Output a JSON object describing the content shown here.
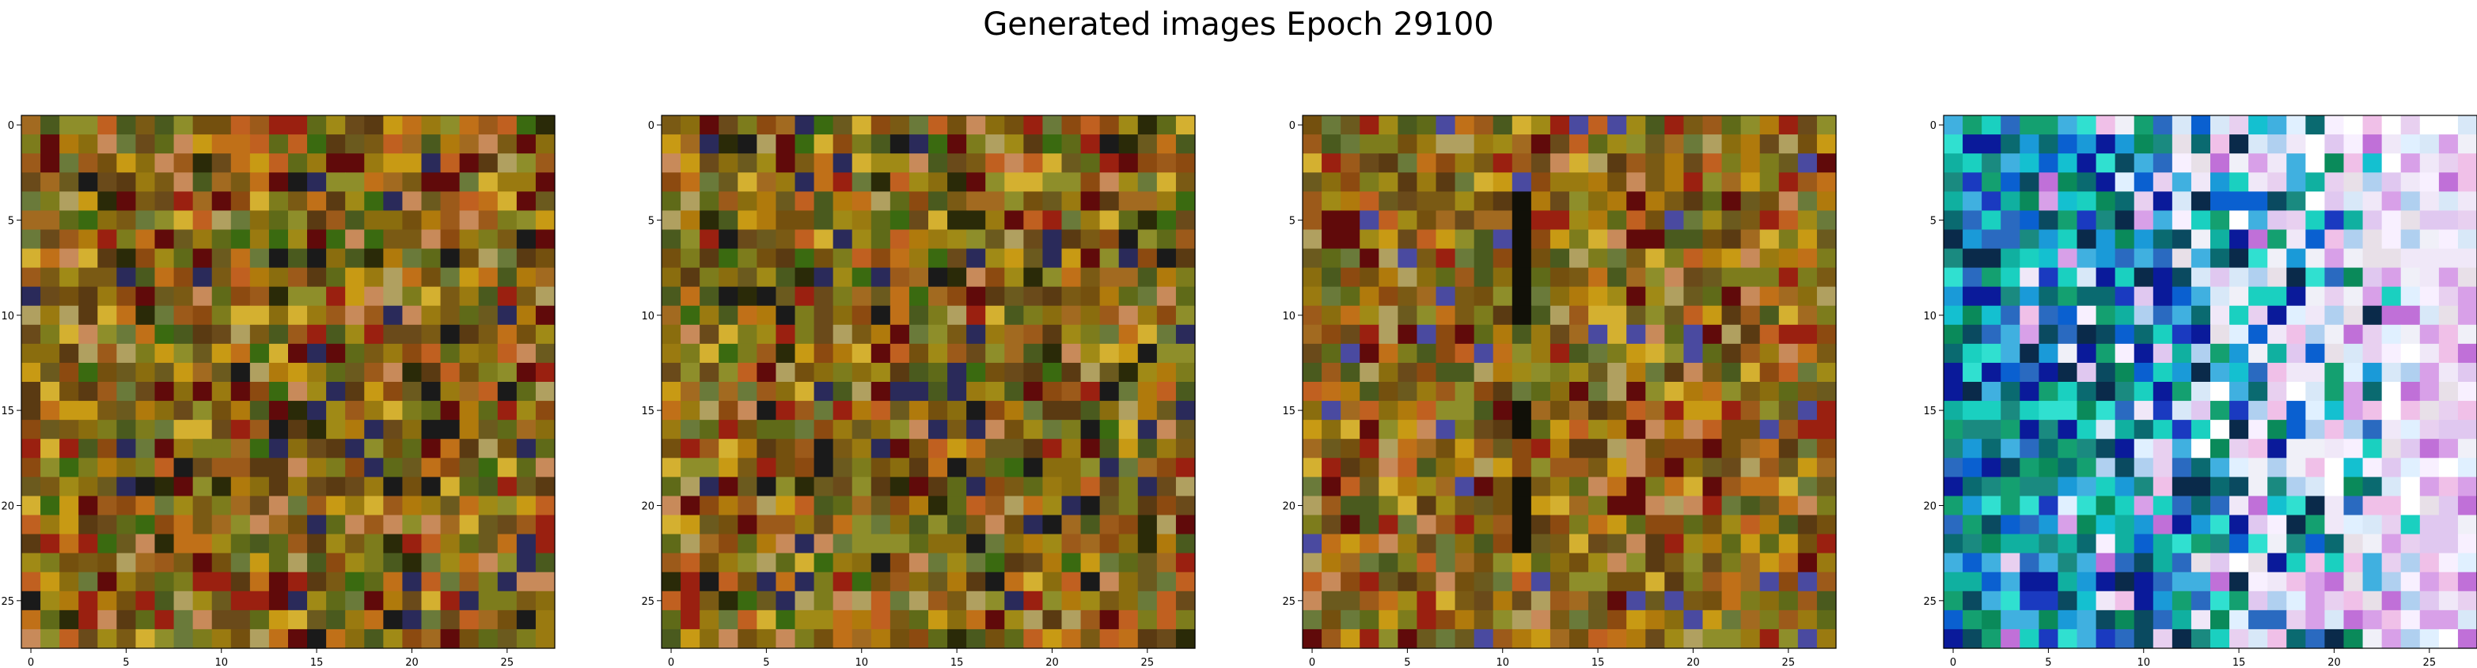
{
  "figure": {
    "title": "Generated images Epoch 29100"
  },
  "chart_data": [
    {
      "type": "heatmap",
      "rows": 28,
      "cols": 28,
      "xlim": [
        -0.5,
        27.5
      ],
      "ylim": [
        27.5,
        -0.5
      ],
      "xticks": [
        0,
        5,
        10,
        15,
        20,
        25
      ],
      "yticks": [
        0,
        5,
        10,
        15,
        20,
        25
      ],
      "grid": false,
      "palette": [
        "#6b5a1e",
        "#8a6d0e",
        "#7a5a14",
        "#9a7a10",
        "#5f6a18",
        "#a08a16",
        "#8c4a10",
        "#b07a0c",
        "#6a4a1a",
        "#7d7c1c",
        "#c89a14",
        "#5a3a12",
        "#9c5a1a",
        "#74500e",
        "#a26a20",
        "#4a5a1e",
        "#c07018",
        "#8e8e2a",
        "#600a0a",
        "#9a2010",
        "#d4b030",
        "#c88a5a",
        "#2a2a08",
        "#3a6a10",
        "#c06020",
        "#1a1a1a",
        "#b0a060",
        "#2a2a5a",
        "#6a7a3a"
      ],
      "seed": 11
    },
    {
      "type": "heatmap",
      "rows": 28,
      "cols": 28,
      "xlim": [
        -0.5,
        27.5
      ],
      "ylim": [
        27.5,
        -0.5
      ],
      "xticks": [
        0,
        5,
        10,
        15,
        20,
        25
      ],
      "yticks": [
        0,
        5,
        10,
        15,
        20,
        25
      ],
      "grid": false,
      "palette": [
        "#6b5a1e",
        "#8a6d0e",
        "#7a5a14",
        "#9a7a10",
        "#5f6a18",
        "#a08a16",
        "#8c4a10",
        "#b07a0c",
        "#6a4a1a",
        "#7d7c1c",
        "#c89a14",
        "#5a3a12",
        "#9c5a1a",
        "#74500e",
        "#a26a20",
        "#4a5a1e",
        "#c07018",
        "#8e8e2a",
        "#600a0a",
        "#9a2010",
        "#d4b030",
        "#c88a5a",
        "#2a2a08",
        "#3a6a10",
        "#c06020",
        "#1a1a1a",
        "#b0a060",
        "#2a2a5a",
        "#6a7a3a"
      ],
      "seed": 23
    },
    {
      "type": "heatmap",
      "rows": 28,
      "cols": 28,
      "xlim": [
        -0.5,
        27.5
      ],
      "ylim": [
        27.5,
        -0.5
      ],
      "xticks": [
        0,
        5,
        10,
        15,
        20,
        25
      ],
      "yticks": [
        0,
        5,
        10,
        15,
        20,
        25
      ],
      "grid": false,
      "palette": [
        "#6b5a1e",
        "#8a6d0e",
        "#7a5a14",
        "#9a7a10",
        "#5f6a18",
        "#a08a16",
        "#8c4a10",
        "#b07a0c",
        "#6a4a1a",
        "#7d7c1c",
        "#c89a14",
        "#5a3a12",
        "#9c5a1a",
        "#74500e",
        "#a26a20",
        "#4a5a1e",
        "#c07018",
        "#8e8e2a",
        "#600a0a",
        "#9a2010",
        "#d4b030",
        "#c88a5a",
        "#c06020",
        "#b0a060",
        "#4a4aa0",
        "#6a7a3a"
      ],
      "dark_column": 11,
      "seed": 37
    },
    {
      "type": "heatmap",
      "rows": 28,
      "cols": 28,
      "xlim": [
        -0.5,
        27.5
      ],
      "ylim": [
        27.5,
        -0.5
      ],
      "xticks": [
        0,
        5,
        10,
        15,
        20,
        25
      ],
      "yticks": [
        0,
        5,
        10,
        15,
        20,
        25
      ],
      "grid": false,
      "palette_left": [
        "#0a1a9a",
        "#1a3ac0",
        "#0a60d0",
        "#1a9ad8",
        "#14c0d0",
        "#10b0a0",
        "#1a8a80",
        "#0a6a70",
        "#1ad0c0",
        "#30e0d0",
        "#0a4a60",
        "#0a8a5a",
        "#2a6ac0",
        "#40b0e0",
        "#0a2a4a",
        "#14a070"
      ],
      "palette_right": [
        "#f0e8f8",
        "#e8d0f0",
        "#f8f0ff",
        "#e0c8f0",
        "#d8a0e8",
        "#c070d8",
        "#f0f0f8",
        "#e8e0e8",
        "#d8e8f8",
        "#b0d0f0",
        "#f0c0e8",
        "#ffffff",
        "#e0f0ff"
      ],
      "seed": 53
    }
  ]
}
